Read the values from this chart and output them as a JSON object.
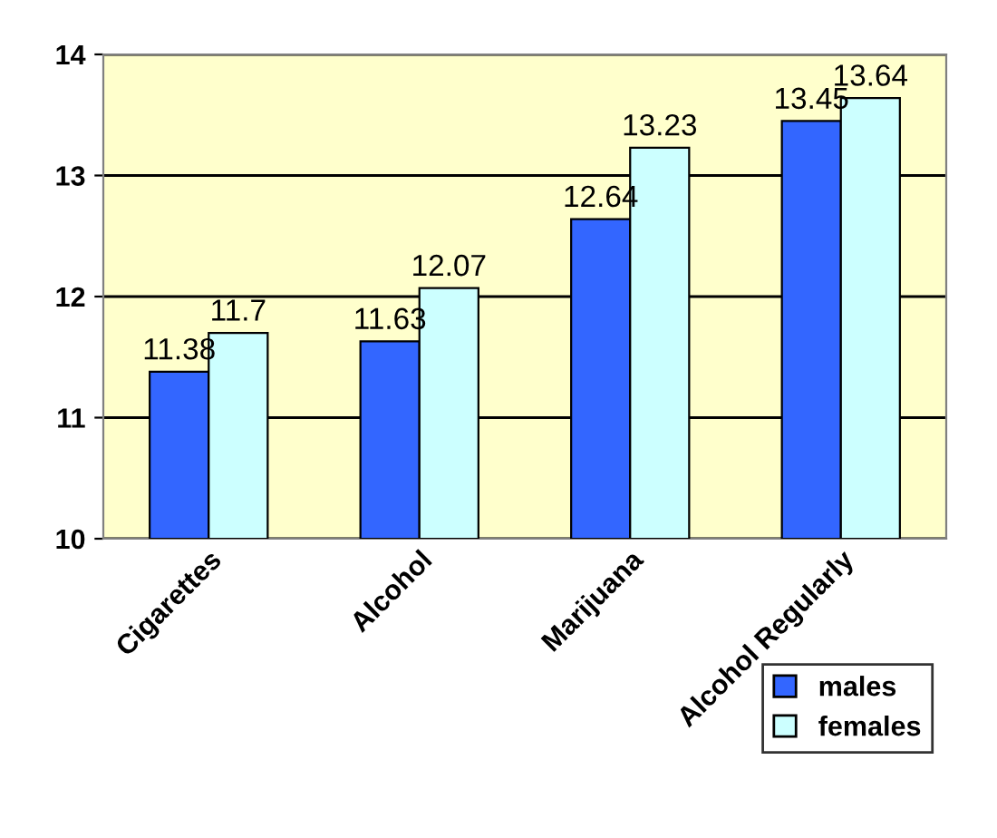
{
  "chart_data": {
    "type": "bar",
    "categories": [
      "Cigarettes",
      "Alcohol",
      "Marijuana",
      "Alcohol Regularly"
    ],
    "series": [
      {
        "name": "males",
        "color": "#3366ff",
        "values": [
          11.38,
          11.63,
          12.64,
          13.45
        ]
      },
      {
        "name": "females",
        "color": "#ccffff",
        "values": [
          11.7,
          12.07,
          13.23,
          13.64
        ]
      }
    ],
    "ylim": [
      10,
      14
    ],
    "yticks": [
      10,
      11,
      12,
      13,
      14
    ],
    "grid": "y",
    "data_labels": true,
    "legend": "bottom right"
  }
}
